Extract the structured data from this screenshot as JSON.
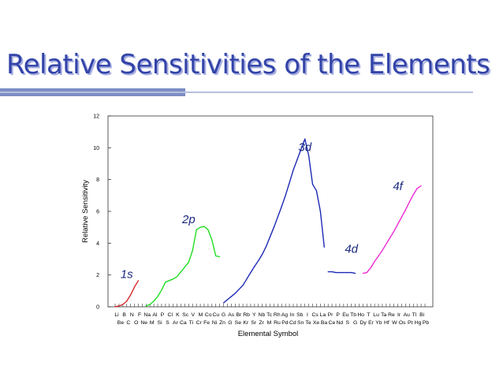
{
  "slide": {
    "title": "Relative Sensitivities of the Elements"
  },
  "chart_data": {
    "type": "line",
    "title": "",
    "xlabel": "Elemental Symbol",
    "ylabel": "Relative Sensitivity",
    "ylim": [
      0,
      12
    ],
    "yticks": [
      0,
      2,
      4,
      6,
      8,
      10,
      12
    ],
    "grid": false,
    "legend": "none",
    "categories": [
      "Li",
      "Be",
      "B",
      "C",
      "N",
      "O",
      "F",
      "Ne",
      "Na",
      "Mg",
      "Al",
      "Si",
      "P",
      "S",
      "Cl",
      "Ar",
      "K",
      "Ca",
      "Sc",
      "Ti",
      "V",
      "Cr",
      "Mn",
      "Fe",
      "Co",
      "Ni",
      "Cu",
      "Zn",
      "Ga",
      "Ge",
      "As",
      "Se",
      "Br",
      "Kr",
      "Rb",
      "Sr",
      "Y",
      "Zr",
      "Nb",
      "Mo",
      "Tc",
      "Ru",
      "Rh",
      "Pd",
      "Ag",
      "Cd",
      "In",
      "Sn",
      "Sb",
      "Te",
      "I",
      "Xe",
      "Cs",
      "Ba",
      "La",
      "Ce",
      "Pr",
      "Nd",
      "Pm",
      "Sm",
      "Eu",
      "Gd",
      "Tb",
      "Dy",
      "Ho",
      "Er",
      "Tm",
      "Yb",
      "Lu",
      "Hf",
      "Ta",
      "W",
      "Re",
      "Os",
      "Ir",
      "Pt",
      "Au",
      "Hg",
      "Tl",
      "Pb",
      "Bi"
    ],
    "tick_labels_top": [
      "Li",
      "B",
      "N",
      "F",
      "Na",
      "Al",
      "P",
      "Cl",
      "K",
      "Sc",
      "V",
      "M",
      "Co",
      "Cu",
      "G",
      "As",
      "Br",
      "Rb",
      "Y",
      "Nb",
      "Tc",
      "Rh",
      "Ag",
      "In",
      "Sb",
      "I",
      "Cs",
      "La",
      "Pr",
      "P",
      "Eu",
      "Tb",
      "Ho",
      "T",
      "Lu",
      "Ta",
      "Re",
      "Ir",
      "Au",
      "Tl",
      "Bi"
    ],
    "tick_labels_bottom": [
      "Be",
      "C",
      "O",
      "Ne",
      "M",
      "Si",
      "S",
      "Ar",
      "Ca",
      "Ti",
      "Cr",
      "Fe",
      "Ni",
      "Zn",
      "G",
      "Se",
      "Kr",
      "Sr",
      "Zr",
      "M",
      "Ru",
      "Pd",
      "Cd",
      "Sn",
      "Te",
      "Xe",
      "Ba",
      "Ce",
      "Nd",
      "S",
      "G",
      "Dy",
      "Er",
      "Yb",
      "Hf",
      "W",
      "Os",
      "Pt",
      "Hg",
      "Pb"
    ],
    "series": [
      {
        "name": "1s",
        "color": "#d42a2a",
        "x": [
          "Li",
          "Be",
          "B",
          "C",
          "N",
          "O",
          "F"
        ],
        "values": [
          0.01,
          0.05,
          0.15,
          0.35,
          0.75,
          1.25,
          1.65
        ]
      },
      {
        "name": "2p",
        "color": "#22dd22",
        "x": [
          "Na",
          "Mg",
          "Al",
          "Si",
          "P",
          "S",
          "Cl",
          "Ar",
          "K",
          "Ca",
          "Sc",
          "Ti",
          "V",
          "Cr",
          "Mn",
          "Fe",
          "Co",
          "Ni",
          "Cu",
          "Zn"
        ],
        "values": [
          0.05,
          0.15,
          0.35,
          0.65,
          1.05,
          1.55,
          1.65,
          1.75,
          1.9,
          2.2,
          2.5,
          2.8,
          3.55,
          4.85,
          5.0,
          5.05,
          4.85,
          4.2,
          3.2,
          3.15
        ]
      },
      {
        "name": "3d",
        "color": "#1c2ab5",
        "x": [
          "Ga",
          "Ge",
          "As",
          "Se",
          "Br",
          "Kr",
          "Rb",
          "Sr",
          "Y",
          "Zr",
          "Nb",
          "Mo",
          "Tc",
          "Ru",
          "Rh",
          "Pd",
          "Ag",
          "Cd",
          "In",
          "Sn",
          "Sb",
          "Te",
          "I",
          "Xe",
          "Cs",
          "Ba",
          "La"
        ],
        "values": [
          0.25,
          0.45,
          0.65,
          0.85,
          1.1,
          1.35,
          1.75,
          2.15,
          2.55,
          2.9,
          3.3,
          3.8,
          4.4,
          5.0,
          5.65,
          6.3,
          7.0,
          7.8,
          8.6,
          9.25,
          9.9,
          10.55,
          9.5,
          7.7,
          7.3,
          6.0,
          3.75
        ]
      },
      {
        "name": "4d",
        "color": "#1c2ab5",
        "x": [
          "Ce",
          "Pr",
          "Nd",
          "Pm",
          "Sm",
          "Eu",
          "Gd",
          "Tb"
        ],
        "values": [
          2.2,
          2.2,
          2.15,
          2.15,
          2.15,
          2.15,
          2.15,
          2.1
        ]
      },
      {
        "name": "4f",
        "color": "#ee2ad6",
        "x": [
          "Ho",
          "Er",
          "Tm",
          "Yb",
          "Lu",
          "Hf",
          "Ta",
          "W",
          "Re",
          "Os",
          "Ir",
          "Pt",
          "Au",
          "Hg",
          "Tl",
          "Pb"
        ],
        "values": [
          2.1,
          2.15,
          2.45,
          2.85,
          3.2,
          3.55,
          3.95,
          4.35,
          4.75,
          5.2,
          5.65,
          6.1,
          6.6,
          7.05,
          7.45,
          7.6
        ]
      }
    ],
    "annotations": [
      {
        "text": "1s",
        "x": "C",
        "y": 1.8
      },
      {
        "text": "2p",
        "x": "Ti",
        "y": 5.25
      },
      {
        "text": "3d",
        "x": "Te",
        "y": 9.8
      },
      {
        "text": "4d",
        "x": "Gd",
        "y": 3.4
      },
      {
        "text": "4f",
        "x": "Os",
        "y": 7.35
      }
    ]
  }
}
